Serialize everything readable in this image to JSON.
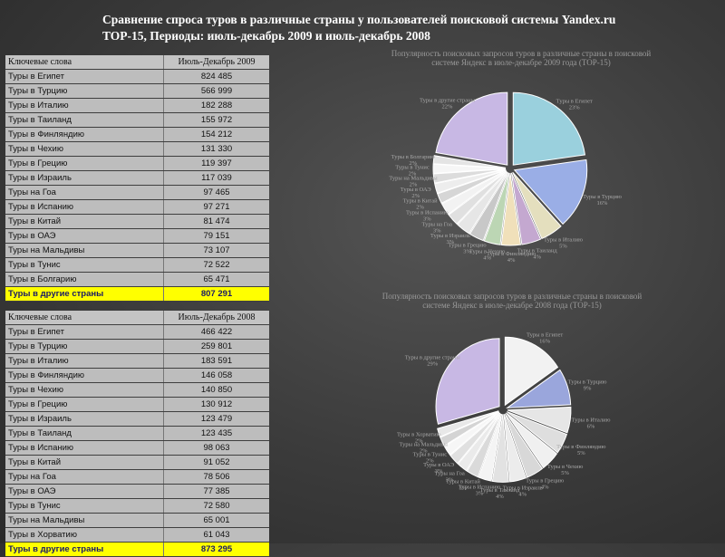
{
  "page": {
    "title_line1": "Сравнение спроса туров в различные страны  у пользователей поисковой системы Yandex.ru",
    "title_line2": "TOP-15, Периоды: июль-декабрь 2009 и июль-декабрь 2008"
  },
  "tables": [
    {
      "header": [
        "Ключевые слова",
        "Июль-Декабрь 2009"
      ],
      "rows": [
        [
          "Туры в Египет",
          "824 485"
        ],
        [
          "Туры в Турцию",
          "566 999"
        ],
        [
          "Туры в Италию",
          "182 288"
        ],
        [
          "Туры в Таиланд",
          "155 972"
        ],
        [
          "Туры в Финляндию",
          "154 212"
        ],
        [
          "Туры в Чехию",
          "131 330"
        ],
        [
          "Туры в Грецию",
          "119 397"
        ],
        [
          "Туры в Израиль",
          "117 039"
        ],
        [
          "Туры на Гоа",
          "97 465"
        ],
        [
          "Туры в Испанию",
          "97 271"
        ],
        [
          "Туры в Китай",
          "81 474"
        ],
        [
          "Туры в ОАЭ",
          "79 151"
        ],
        [
          "Туры на Мальдивы",
          "73 107"
        ],
        [
          "Туры в Тунис",
          "72 522"
        ],
        [
          "Туры в Болгарию",
          "65 471"
        ]
      ],
      "total": [
        "Туры в другие страны",
        "807 291"
      ]
    },
    {
      "header": [
        "Ключевые слова",
        "Июль-Декабрь 2008"
      ],
      "rows": [
        [
          "Туры в Египет",
          "466 422"
        ],
        [
          "Туры в Турцию",
          "259 801"
        ],
        [
          "Туры в Италию",
          "183 591"
        ],
        [
          "Туры в Финляндию",
          "146 058"
        ],
        [
          "Туры в Чехию",
          "140 850"
        ],
        [
          "Туры в Грецию",
          "130 912"
        ],
        [
          "Туры в Израиль",
          "123 479"
        ],
        [
          "Туры в Таиланд",
          "123 435"
        ],
        [
          "Туры в Испанию",
          "98 063"
        ],
        [
          "Туры в Китай",
          "91 052"
        ],
        [
          "Туры на Гоа",
          "78 506"
        ],
        [
          "Туры в ОАЭ",
          "77 385"
        ],
        [
          "Туры в Тунис",
          "72 580"
        ],
        [
          "Туры на Мальдивы",
          "65 001"
        ],
        [
          "Туры в Хорватию",
          "61 043"
        ]
      ],
      "total": [
        "Туры в другие страны",
        "873 295"
      ]
    }
  ],
  "chart_data": [
    {
      "type": "pie",
      "title": "Популярность поисковых запросов туров в различные страны в поисковой системе Яндекс в июле-декабре 2009 года (TOP-15)",
      "categories": [
        "Туры в Египет",
        "Туры в Турцию",
        "Туры в Италию",
        "Туры в Таиланд",
        "Туры в Финляндию",
        "Туры в Чехию",
        "Туры в Грецию",
        "Туры в Израиль",
        "Туры на Гоа",
        "Туры в Испанию",
        "Туры в Китай",
        "Туры в ОАЭ",
        "Туры на Мальдивы",
        "Туры в Тунис",
        "Туры в Болгарию",
        "Туры в другие страны"
      ],
      "values": [
        824485,
        566999,
        182288,
        155972,
        154212,
        131330,
        119397,
        117039,
        97465,
        97271,
        81474,
        79151,
        73107,
        72522,
        65471,
        807291
      ],
      "colors": [
        "#9ad0dd",
        "#9aaee6",
        "#e4dfbe",
        "#c4a8d0",
        "#f0e0ba",
        "#bcd6b4",
        "#c8c8c8",
        "#e6e6e6",
        "#e0e0e0",
        "#f2f2f2",
        "#d6d6d6",
        "#ededed",
        "#dcdcdc",
        "#f6f6f6",
        "#e4e4e4",
        "#c8b8e4"
      ]
    },
    {
      "type": "pie",
      "title": "Популярность поисковых запросов туров в различные страны в поисковой системе Яндекс в июле-декабре 2008 года (TOP-15)",
      "categories": [
        "Туры в Египет",
        "Туры в Турцию",
        "Туры в Италию",
        "Туры в Финляндию",
        "Туры в Чехию",
        "Туры в Грецию",
        "Туры в Израиль",
        "Туры в Таиланд",
        "Туры в Испанию",
        "Туры в Китай",
        "Туры на Гоа",
        "Туры в ОАЭ",
        "Туры в Тунис",
        "Туры на Мальдивы",
        "Туры в Хорватию",
        "Туры в другие страны"
      ],
      "values": [
        466422,
        259801,
        183591,
        146058,
        140850,
        130912,
        123479,
        123435,
        98063,
        91052,
        78506,
        77385,
        72580,
        65001,
        61043,
        873295
      ],
      "colors": [
        "#f2f2f2",
        "#9aa6dc",
        "#e6e6e6",
        "#dedede",
        "#f0f0f0",
        "#d8d8d8",
        "#ececec",
        "#e2e2e2",
        "#f4f4f4",
        "#dadada",
        "#eaeaea",
        "#e0e0e0",
        "#f6f6f6",
        "#d4d4d4",
        "#e8e8e8",
        "#c8b8e4"
      ]
    }
  ]
}
